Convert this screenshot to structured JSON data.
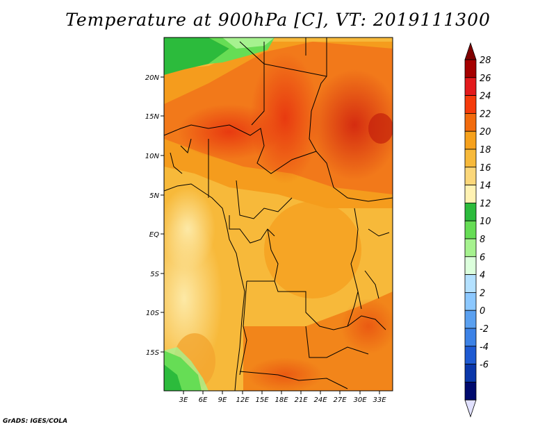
{
  "title": "Temperature at 900hPa [C], VT: 2019111300",
  "footer": "GrADS: IGES/COLA",
  "lat_labels": [
    "20N",
    "15N",
    "10N",
    "5N",
    "EQ",
    "5S",
    "10S",
    "15S"
  ],
  "lon_labels": [
    "3E",
    "6E",
    "9E",
    "12E",
    "15E",
    "18E",
    "21E",
    "24E",
    "27E",
    "30E",
    "33E"
  ],
  "colorbar": {
    "labels": [
      "28",
      "26",
      "24",
      "22",
      "20",
      "18",
      "16",
      "14",
      "12",
      "10",
      "8",
      "6",
      "4",
      "2",
      "0",
      "-2",
      "-4",
      "-6"
    ],
    "colors": [
      "#7f0000",
      "#a50000",
      "#e31a1c",
      "#f53b0b",
      "#f26b0d",
      "#f6a11c",
      "#f7b93a",
      "#fbd77a",
      "#fff2b3",
      "#2cbb3c",
      "#66dd55",
      "#a6f28f",
      "#dcffdc",
      "#b4e1ff",
      "#8cc8ff",
      "#5aa0f0",
      "#3c82e6",
      "#1e5ad2",
      "#0a37aa",
      "#000a6e",
      "#e1e1ff"
    ]
  },
  "map": {
    "extent": {
      "lon_min": 0,
      "lon_max": 35,
      "lat_min": -20,
      "lat_max": 24.5
    },
    "units": "C"
  }
}
